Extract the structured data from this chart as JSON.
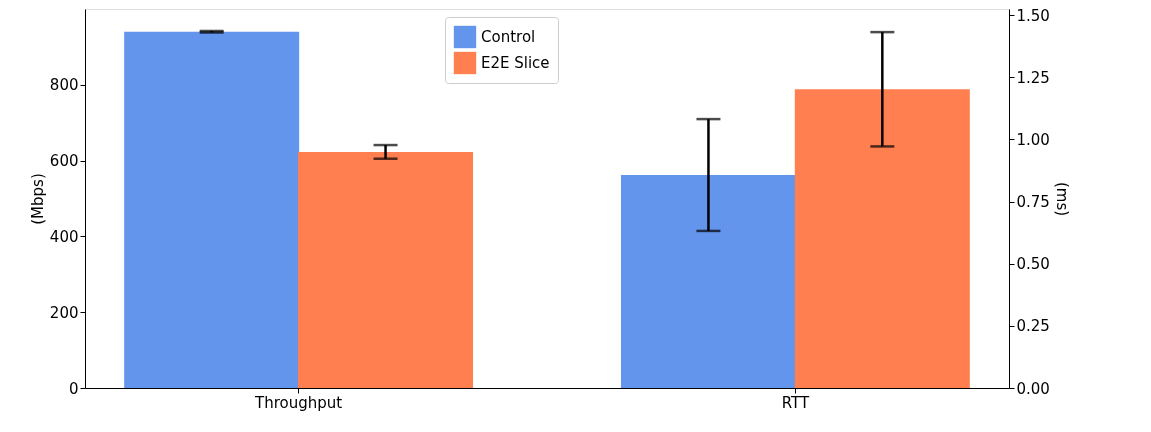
{
  "chart_data": {
    "type": "bar",
    "categories": [
      "Throughput",
      "RTT"
    ],
    "ylabel": "(Mbps)",
    "y2label": "(ms)",
    "series": [
      {
        "name": "Control",
        "color": "#6495ed",
        "values": [
          940,
          null
        ],
        "errors": [
          2,
          null
        ]
      },
      {
        "name": "E2E Slice",
        "color": "#ff7f50",
        "values": [
          623,
          null
        ],
        "errors": [
          18,
          null
        ]
      },
      {
        "color": "#6495ed",
        "values": [
          null,
          0.857
        ],
        "errors": [
          null,
          0.225
        ],
        "axis": "y2"
      },
      {
        "color": "#ff7f50",
        "values": [
          null,
          1.202
        ],
        "errors": [
          null,
          0.23
        ],
        "axis": "y2"
      }
    ],
    "ylim": [
      0,
      1000
    ],
    "yticks": [
      0,
      200,
      400,
      600,
      800
    ],
    "y2lim": [
      0,
      1.525
    ],
    "y2ticks": [
      {
        "value": 0,
        "label": "0.00"
      },
      {
        "value": 0.25,
        "label": "0.25"
      },
      {
        "value": 0.5,
        "label": "0.50"
      },
      {
        "value": 0.75,
        "label": "0.75"
      },
      {
        "value": 1,
        "label": "1.00"
      },
      {
        "value": 1.25,
        "label": "1.25"
      },
      {
        "value": 1.5,
        "label": "1.50"
      }
    ],
    "grid": false,
    "legend": "top"
  }
}
